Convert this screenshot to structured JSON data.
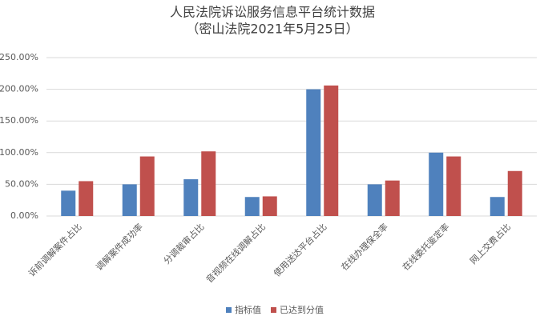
{
  "chart_data": {
    "type": "bar",
    "title": "人民法院诉讼服务信息平台统计数据",
    "subtitle": "（密山法院2021年5月25日）",
    "categories": [
      "诉前调解案件占比",
      "调解案件成功率",
      "分调裁审占比",
      "音视频在线调解占比",
      "使用送达平台占比",
      "在线办理保全率",
      "在线委托鉴定率",
      "网上交费占比"
    ],
    "series": [
      {
        "name": "指标值",
        "color": "#4f81bd",
        "values": [
          40,
          50,
          58,
          30,
          200,
          50,
          100,
          30
        ]
      },
      {
        "name": "已达到分值",
        "color": "#c0504d",
        "values": [
          55,
          94,
          102,
          31,
          206,
          56,
          94,
          71
        ]
      }
    ],
    "ylim": [
      0,
      250
    ],
    "yticks": [
      {
        "value": 0,
        "label": "0.00%"
      },
      {
        "value": 50,
        "label": "50.00%"
      },
      {
        "value": 100,
        "label": "100.00%"
      },
      {
        "value": 150,
        "label": "150.00%"
      },
      {
        "value": 200,
        "label": "200.00%"
      },
      {
        "value": 250,
        "label": "250.00%"
      }
    ],
    "grid": true,
    "legend": "bottom"
  }
}
